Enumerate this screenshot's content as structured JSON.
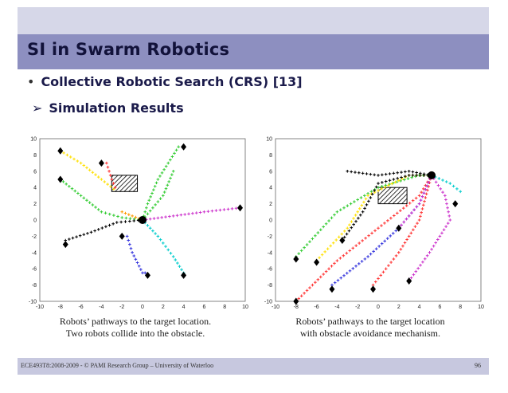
{
  "title": "SI in Swarm Robotics",
  "bullet": "Collective Robotic Search (CRS) [13]",
  "sub_bullet": "Simulation Results",
  "bullet_glyph": "•",
  "sub_glyph": "➢",
  "colors": {
    "title_bar": "#8d8fc0",
    "top_bar": "#d6d7e8",
    "footer_bar": "#c7c8df",
    "title_text": "#12123a"
  },
  "chart_data": [
    {
      "type": "scatter",
      "xlim": [
        -10,
        10
      ],
      "ylim": [
        -10,
        10
      ],
      "xticks": [
        "-10",
        "-8",
        "-6",
        "-4",
        "-2",
        "0",
        "2",
        "4",
        "6",
        "8",
        "10"
      ],
      "yticks": [
        "10",
        "8",
        "6",
        "4",
        "2",
        "0",
        "-2",
        "-4",
        "-6",
        "-8",
        "-10"
      ],
      "caption": [
        "Robots’ pathways to the target location.",
        "Two robots collide into the obstacle."
      ],
      "target": [
        0,
        0
      ],
      "obstacle": [
        -3,
        3.5,
        2.5,
        2
      ],
      "paths": [
        {
          "color": "#ffe000",
          "pts": [
            [
              -8,
              8.5
            ],
            [
              -6,
              7
            ],
            [
              -4,
              5
            ],
            [
              -2.5,
              3.5
            ]
          ]
        },
        {
          "color": "#33cc33",
          "pts": [
            [
              -8,
              5
            ],
            [
              -6,
              3
            ],
            [
              -4,
              1
            ],
            [
              -2,
              0.3
            ],
            [
              0,
              0
            ]
          ]
        },
        {
          "color": "#ff3333",
          "pts": [
            [
              -3.5,
              7
            ],
            [
              -3,
              5
            ],
            [
              -2.5,
              3.5
            ]
          ]
        },
        {
          "color": "#33cc33",
          "pts": [
            [
              3.5,
              9
            ],
            [
              2.5,
              7
            ],
            [
              1.5,
              5
            ],
            [
              0.5,
              2
            ],
            [
              0,
              0
            ]
          ]
        },
        {
          "color": "#33cc33",
          "pts": [
            [
              3,
              6
            ],
            [
              2,
              3
            ],
            [
              0,
              0
            ]
          ]
        },
        {
          "color": "#000000",
          "pts": [
            [
              -7.5,
              -2.5
            ],
            [
              -5,
              -1.5
            ],
            [
              -2.5,
              -0.3
            ],
            [
              0,
              0
            ]
          ]
        },
        {
          "color": "#3333dd",
          "pts": [
            [
              -1.5,
              -2
            ],
            [
              -1,
              -4
            ],
            [
              0,
              -6.5
            ],
            [
              0.5,
              -6.5
            ]
          ]
        },
        {
          "color": "#00cccc",
          "pts": [
            [
              4,
              -6.5
            ],
            [
              3,
              -4.5
            ],
            [
              1.5,
              -2
            ],
            [
              0,
              0
            ]
          ]
        },
        {
          "color": "#cc33cc",
          "pts": [
            [
              9.5,
              1.5
            ],
            [
              6,
              1
            ],
            [
              3,
              0.5
            ],
            [
              0,
              0
            ]
          ]
        },
        {
          "color": "#ff9900",
          "pts": [
            [
              -2,
              1
            ],
            [
              -1,
              0.5
            ],
            [
              0,
              0
            ]
          ]
        }
      ],
      "starts": [
        [
          -8,
          8.5
        ],
        [
          -8,
          5
        ],
        [
          -4,
          7
        ],
        [
          4,
          9
        ],
        [
          -7.5,
          -3
        ],
        [
          -2,
          -2
        ],
        [
          0.5,
          -6.8
        ],
        [
          4,
          -6.8
        ],
        [
          9.5,
          1.5
        ]
      ]
    },
    {
      "type": "scatter",
      "xlim": [
        -10,
        10
      ],
      "ylim": [
        -10,
        10
      ],
      "xticks": [
        "-10",
        "-8",
        "-6",
        "-4",
        "-2",
        "0",
        "2",
        "4",
        "6",
        "8",
        "10"
      ],
      "yticks": [
        "10",
        "8",
        "6",
        "4",
        "2",
        "0",
        "-2",
        "-4",
        "-6",
        "-8",
        "-10"
      ],
      "caption": [
        "Robots’ pathways to the target location",
        "with obstacle avoidance mechanism."
      ],
      "target": [
        5.2,
        5.5
      ],
      "obstacle": [
        0,
        2,
        2.8,
        2
      ],
      "paths": [
        {
          "color": "#ff3333",
          "pts": [
            [
              -8,
              -10
            ],
            [
              -4,
              -5
            ],
            [
              0,
              -1
            ],
            [
              4,
              3
            ],
            [
              5.2,
              5.5
            ]
          ]
        },
        {
          "color": "#33cc33",
          "pts": [
            [
              -8,
              -4.5
            ],
            [
              -4,
              1
            ],
            [
              0,
              4
            ],
            [
              4,
              5.5
            ],
            [
              5.2,
              5.5
            ]
          ]
        },
        {
          "color": "#ffe000",
          "pts": [
            [
              -6,
              -5
            ],
            [
              -3,
              -1
            ],
            [
              -1,
              3
            ],
            [
              3,
              5.5
            ],
            [
              5.2,
              5.5
            ]
          ]
        },
        {
          "color": "#000000",
          "pts": [
            [
              -3.5,
              -2.5
            ],
            [
              -1.5,
              1
            ],
            [
              0,
              4.5
            ],
            [
              3,
              5.5
            ],
            [
              5.2,
              5.5
            ]
          ]
        },
        {
          "color": "#3333dd",
          "pts": [
            [
              -4.5,
              -8
            ],
            [
              -1,
              -4.5
            ],
            [
              2,
              -1
            ],
            [
              4,
              2
            ],
            [
              5.2,
              5.5
            ]
          ]
        },
        {
          "color": "#ff3333",
          "pts": [
            [
              -0.5,
              -8
            ],
            [
              2,
              -4
            ],
            [
              4,
              0
            ],
            [
              5.2,
              5.5
            ]
          ]
        },
        {
          "color": "#cc33cc",
          "pts": [
            [
              3,
              -7.5
            ],
            [
              5,
              -4
            ],
            [
              7,
              0
            ],
            [
              6.5,
              3
            ],
            [
              5.2,
              5.5
            ]
          ]
        },
        {
          "color": "#00cccc",
          "pts": [
            [
              8,
              3.5
            ],
            [
              7,
              4.5
            ],
            [
              5.2,
              5.5
            ]
          ]
        },
        {
          "color": "#cc33cc",
          "pts": [
            [
              2,
              -1
            ],
            [
              4,
              2
            ],
            [
              5.2,
              5.5
            ]
          ]
        },
        {
          "color": "#000000",
          "pts": [
            [
              -3,
              6
            ],
            [
              0,
              5.5
            ],
            [
              3,
              6
            ],
            [
              5.2,
              5.5
            ]
          ]
        }
      ],
      "starts": [
        [
          -8,
          -10
        ],
        [
          -8,
          -4.8
        ],
        [
          -6,
          -5.2
        ],
        [
          -3.5,
          -2.5
        ],
        [
          -4.5,
          -8.5
        ],
        [
          -0.5,
          -8.5
        ],
        [
          3,
          -7.5
        ],
        [
          7.5,
          2
        ],
        [
          2,
          -1
        ]
      ]
    }
  ],
  "footer": {
    "left": "ECE493T8:2008-2009 -  ©   PAMI Research Group – University of Waterloo",
    "right": "96"
  }
}
